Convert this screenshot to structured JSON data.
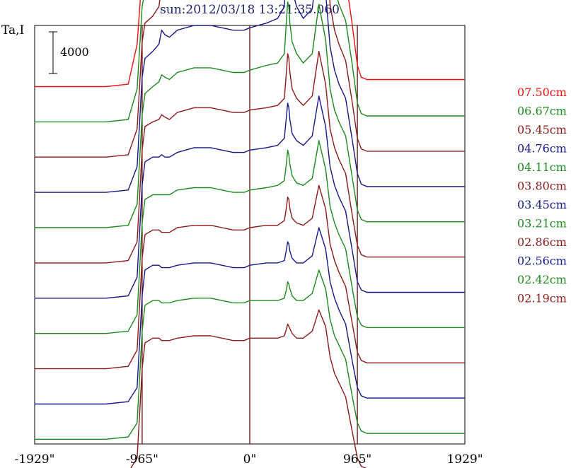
{
  "title": "sun:2012/03/18 13:21:35.060",
  "ylabel": "Ta,I",
  "scale_bar_label": "4000",
  "colors": {
    "frame": "#000000",
    "marker": "#5a1010"
  },
  "chart_data": {
    "type": "line",
    "title": "sun:2012/03/18 13:21:35.060",
    "ylabel": "Ta,I",
    "xlabel": "",
    "xlim": [
      -1929,
      1929
    ],
    "x_ticks": [
      {
        "value": -1929,
        "label": "-1929\""
      },
      {
        "value": -965,
        "label": "-965\""
      },
      {
        "value": 0,
        "label": "0\""
      },
      {
        "value": 965,
        "label": "965\""
      },
      {
        "value": 1929,
        "label": "1929\""
      }
    ],
    "vertical_markers": [
      -965,
      0,
      965
    ],
    "scale_bar_value": 4000,
    "ylim": [
      0,
      17800
    ],
    "grid": false,
    "legend_position": "right",
    "x": [
      -1929,
      -1290,
      -1090,
      -1010,
      -965,
      -940,
      -870,
      -815,
      -790,
      -760,
      -720,
      -650,
      -500,
      -350,
      -250,
      -150,
      -50,
      0,
      150,
      250,
      310,
      330,
      340,
      350,
      360,
      380,
      420,
      480,
      560,
      620,
      680,
      720,
      760,
      800,
      860,
      920,
      965,
      1000,
      1050,
      1150,
      1380,
      1929
    ],
    "series": [
      {
        "name": "07.50cm",
        "color": "#ee1111",
        "baseline": 15200,
        "values": [
          0,
          0,
          100,
          1800,
          4800,
          5400,
          5800,
          7000,
          8800,
          8400,
          8100,
          8500,
          8800,
          8800,
          8700,
          8600,
          8600,
          8700,
          8900,
          9200,
          10000,
          12600,
          13800,
          13500,
          12400,
          11200,
          10200,
          9400,
          9800,
          12800,
          10600,
          7600,
          6200,
          5400,
          4600,
          2600,
          900,
          400,
          300,
          300,
          300,
          300
        ]
      },
      {
        "name": "06.67cm",
        "color": "#1c8a1c",
        "baseline": 13700,
        "values": [
          0,
          0,
          100,
          1400,
          4900,
          5600,
          5900,
          6600,
          7900,
          7600,
          7400,
          7700,
          8000,
          8000,
          7900,
          7800,
          7800,
          7900,
          8100,
          8400,
          9100,
          11400,
          12500,
          12200,
          11200,
          10200,
          9300,
          8600,
          9000,
          11900,
          9800,
          7000,
          5700,
          5000,
          4300,
          2400,
          800,
          350,
          250,
          250,
          250,
          250
        ]
      },
      {
        "name": "05.45cm",
        "color": "#8b1a1a",
        "baseline": 12200,
        "values": [
          0,
          0,
          100,
          1200,
          4900,
          5700,
          6000,
          6400,
          7300,
          7000,
          6900,
          7200,
          7400,
          7400,
          7300,
          7200,
          7200,
          7300,
          7500,
          7700,
          8300,
          10300,
          11300,
          11000,
          10100,
          9200,
          8400,
          7800,
          8200,
          11000,
          9000,
          6500,
          5400,
          4800,
          4100,
          2300,
          800,
          350,
          250,
          250,
          250,
          250
        ]
      },
      {
        "name": "04.76cm",
        "color": "#17178a",
        "baseline": 10700,
        "values": [
          0,
          0,
          100,
          1100,
          4900,
          5700,
          6000,
          6300,
          6900,
          6700,
          6600,
          6900,
          7100,
          7100,
          7000,
          6900,
          6900,
          7000,
          7200,
          7400,
          7900,
          9700,
          10600,
          10300,
          9500,
          8600,
          7900,
          7400,
          7800,
          10300,
          8500,
          6200,
          5200,
          4600,
          4000,
          2200,
          800,
          350,
          250,
          250,
          250,
          250
        ]
      },
      {
        "name": "04.11cm",
        "color": "#1c8a1c",
        "baseline": 9200,
        "values": [
          0,
          0,
          100,
          1000,
          4800,
          5700,
          6000,
          6200,
          6500,
          6400,
          6300,
          6600,
          6800,
          6800,
          6700,
          6600,
          6600,
          6700,
          6900,
          7000,
          7400,
          8900,
          9600,
          9400,
          8700,
          7900,
          7400,
          7000,
          7400,
          9500,
          8000,
          5900,
          5000,
          4500,
          3900,
          2100,
          750,
          350,
          250,
          250,
          250,
          250
        ]
      },
      {
        "name": "03.80cm",
        "color": "#8b1a1a",
        "baseline": 7700,
        "values": [
          0,
          0,
          100,
          900,
          4800,
          5800,
          6000,
          6100,
          6300,
          6200,
          6100,
          6400,
          6600,
          6600,
          6500,
          6400,
          6400,
          6500,
          6600,
          6700,
          7000,
          8200,
          8900,
          8700,
          8100,
          7400,
          7000,
          6700,
          7100,
          9000,
          7600,
          5700,
          4900,
          4400,
          3800,
          2000,
          750,
          350,
          250,
          250,
          250,
          250
        ]
      },
      {
        "name": "03.45cm",
        "color": "#17178a",
        "baseline": 6200,
        "values": [
          0,
          0,
          100,
          900,
          4800,
          5800,
          6000,
          6000,
          6100,
          6000,
          6000,
          6200,
          6400,
          6400,
          6300,
          6200,
          6200,
          6300,
          6400,
          6500,
          6800,
          7800,
          8300,
          8100,
          7600,
          7000,
          6700,
          6500,
          6900,
          8600,
          7300,
          5600,
          4800,
          4300,
          3700,
          2000,
          700,
          350,
          250,
          250,
          250,
          250
        ]
      },
      {
        "name": "03.21cm",
        "color": "#1c8a1c",
        "baseline": 4700,
        "values": [
          0,
          0,
          100,
          800,
          4700,
          5700,
          5900,
          5900,
          5900,
          5900,
          5900,
          6100,
          6200,
          6200,
          6100,
          6000,
          6000,
          6100,
          6200,
          6300,
          6500,
          7300,
          7800,
          7600,
          7200,
          6700,
          6400,
          6300,
          6600,
          8200,
          7000,
          5400,
          4700,
          4200,
          3600,
          1900,
          700,
          350,
          250,
          250,
          250,
          250
        ]
      },
      {
        "name": "02.86cm",
        "color": "#8b1a1a",
        "baseline": 3200,
        "values": [
          0,
          0,
          100,
          800,
          4700,
          5700,
          5900,
          5900,
          5800,
          5800,
          5800,
          6000,
          6100,
          6100,
          6000,
          5900,
          5900,
          6000,
          6100,
          6100,
          6300,
          6900,
          7300,
          7200,
          6800,
          6400,
          6200,
          6100,
          6400,
          7800,
          6800,
          5300,
          4600,
          4100,
          3500,
          1900,
          700,
          350,
          250,
          250,
          250,
          250
        ]
      },
      {
        "name": "02.56cm",
        "color": "#17178a",
        "baseline": 1700,
        "values": [
          0,
          0,
          100,
          700,
          4600,
          5700,
          5900,
          5900,
          5800,
          5800,
          5800,
          5900,
          6000,
          6000,
          5900,
          5800,
          5800,
          5900,
          6000,
          6000,
          6100,
          6600,
          6900,
          6800,
          6500,
          6200,
          6000,
          6000,
          6300,
          7500,
          6600,
          5200,
          4500,
          4000,
          3400,
          1800,
          700,
          350,
          250,
          250,
          250,
          250
        ]
      },
      {
        "name": "02.42cm",
        "color": "#1c8a1c",
        "baseline": 200,
        "values": [
          0,
          0,
          100,
          700,
          4600,
          5700,
          5900,
          5900,
          5800,
          5800,
          5800,
          5900,
          6000,
          6000,
          5900,
          5800,
          5800,
          5900,
          5900,
          5900,
          6000,
          6400,
          6700,
          6600,
          6400,
          6100,
          5900,
          5900,
          6200,
          7200,
          6400,
          5100,
          4400,
          4000,
          3400,
          1800,
          700,
          350,
          250,
          250,
          250,
          250
        ]
      },
      {
        "name": "02.19cm",
        "color": "#8b1a1a",
        "baseline": -1300,
        "values": [
          0,
          0,
          100,
          700,
          4500,
          5600,
          5800,
          5800,
          5700,
          5700,
          5700,
          5800,
          5900,
          5900,
          5800,
          5700,
          5700,
          5800,
          5800,
          5800,
          5900,
          6200,
          6400,
          6300,
          6200,
          6000,
          5800,
          5800,
          6100,
          7000,
          6300,
          5000,
          4300,
          3900,
          3300,
          1800,
          700,
          350,
          250,
          250,
          250,
          250
        ]
      }
    ]
  }
}
